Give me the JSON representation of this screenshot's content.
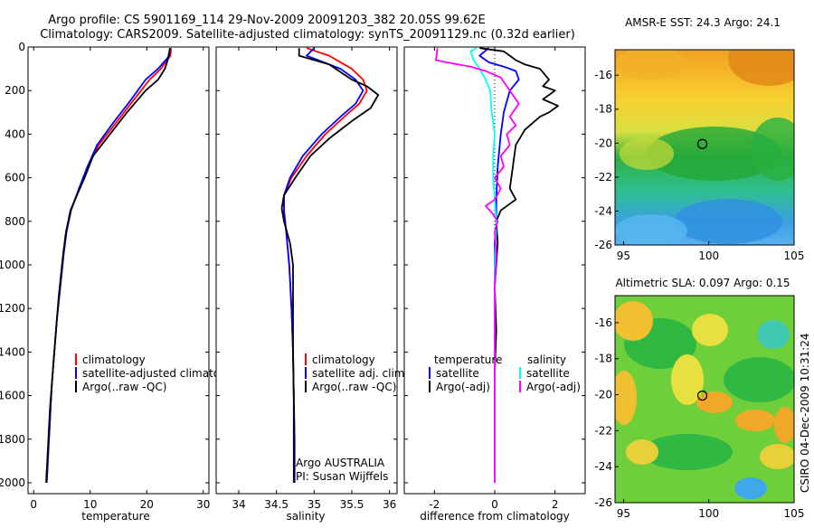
{
  "title": {
    "line1": "Argo profile: CS 5901169_114 29-Nov-2009 20091203_382 20.05S 99.62E",
    "line2": "Climatology: CARS2009. Satellite-adjusted climatology: synTS_20091129.nc (0.32d earlier)"
  },
  "credit": "CSIRO 04-Dec-2009 10:31:24",
  "colors": {
    "clim": "#ff0000",
    "sat": "#0000ff",
    "argo": "#000000",
    "sat_sal": "#00ffff",
    "argo_sal": "#ff00ff"
  },
  "chart_data": [
    {
      "type": "line",
      "id": "temperature",
      "xlabel": "temperature",
      "xlim": [
        -1,
        31
      ],
      "ylim": [
        0,
        2050
      ],
      "yreverse": true,
      "xticks": [
        0,
        10,
        20,
        30
      ],
      "yticks": [
        0,
        200,
        400,
        600,
        800,
        1000,
        1200,
        1400,
        1600,
        1800,
        2000
      ],
      "series": [
        {
          "name": "climatology",
          "color": "clim",
          "points": [
            [
              24.3,
              5
            ],
            [
              24.2,
              40
            ],
            [
              22.5,
              100
            ],
            [
              20.5,
              150
            ],
            [
              17.5,
              250
            ],
            [
              14.5,
              350
            ],
            [
              11.5,
              450
            ],
            [
              9.6,
              550
            ],
            [
              8.1,
              650
            ],
            [
              6.6,
              750
            ],
            [
              5.8,
              850
            ],
            [
              5.3,
              950
            ],
            [
              4.9,
              1050
            ],
            [
              4.5,
              1150
            ],
            [
              4.1,
              1250
            ],
            [
              3.8,
              1350
            ],
            [
              3.5,
              1450
            ],
            [
              3.2,
              1550
            ],
            [
              3.0,
              1650
            ],
            [
              2.8,
              1750
            ],
            [
              2.6,
              1850
            ],
            [
              2.4,
              1950
            ],
            [
              2.3,
              2000
            ]
          ]
        },
        {
          "name": "satellite-adjusted climatology",
          "color": "sat",
          "points": [
            [
              24.1,
              5
            ],
            [
              24.0,
              40
            ],
            [
              22.0,
              100
            ],
            [
              19.8,
              150
            ],
            [
              17.0,
              250
            ],
            [
              14.0,
              350
            ],
            [
              11.2,
              450
            ],
            [
              9.5,
              550
            ],
            [
              8.0,
              650
            ],
            [
              6.6,
              750
            ],
            [
              5.8,
              850
            ],
            [
              5.3,
              950
            ],
            [
              4.9,
              1050
            ],
            [
              4.5,
              1150
            ],
            [
              4.1,
              1250
            ],
            [
              3.8,
              1350
            ],
            [
              3.5,
              1450
            ],
            [
              3.2,
              1550
            ],
            [
              3.0,
              1650
            ],
            [
              2.8,
              1750
            ],
            [
              2.6,
              1850
            ],
            [
              2.4,
              1950
            ],
            [
              2.3,
              2000
            ]
          ]
        },
        {
          "name": "Argo(..raw -QC)",
          "color": "argo",
          "points": [
            [
              24.1,
              5
            ],
            [
              23.7,
              60
            ],
            [
              23.2,
              100
            ],
            [
              22.0,
              150
            ],
            [
              19.8,
              200
            ],
            [
              16.5,
              300
            ],
            [
              13.5,
              400
            ],
            [
              10.5,
              500
            ],
            [
              9.0,
              600
            ],
            [
              7.3,
              700
            ],
            [
              6.5,
              750
            ],
            [
              5.7,
              850
            ],
            [
              5.2,
              950
            ],
            [
              4.8,
              1050
            ],
            [
              4.4,
              1150
            ],
            [
              4.1,
              1250
            ],
            [
              3.8,
              1350
            ],
            [
              3.5,
              1450
            ],
            [
              3.2,
              1550
            ],
            [
              2.9,
              1650
            ],
            [
              2.7,
              1750
            ],
            [
              2.5,
              1850
            ],
            [
              2.3,
              1950
            ],
            [
              2.2,
              2000
            ]
          ]
        }
      ],
      "legend": [
        {
          "label": "climatology",
          "color": "clim"
        },
        {
          "label": "satellite-adjusted climatology",
          "color": "sat"
        },
        {
          "label": "Argo(..raw -QC)",
          "color": "argo"
        }
      ]
    },
    {
      "type": "line",
      "id": "salinity",
      "xlabel": "salinity",
      "xlim": [
        33.7,
        36.1
      ],
      "ylim": [
        0,
        2050
      ],
      "yreverse": true,
      "xticks": [
        34,
        34.5,
        35,
        35.5,
        36
      ],
      "xticklabels": [
        "34",
        "34.5",
        "35",
        "35.5",
        "36"
      ],
      "series": [
        {
          "name": "climatology",
          "color": "clim",
          "points": [
            [
              34.9,
              5
            ],
            [
              35.2,
              40
            ],
            [
              35.5,
              100
            ],
            [
              35.65,
              150
            ],
            [
              35.7,
              200
            ],
            [
              35.6,
              260
            ],
            [
              35.4,
              320
            ],
            [
              35.15,
              400
            ],
            [
              34.9,
              500
            ],
            [
              34.7,
              600
            ],
            [
              34.6,
              680
            ],
            [
              34.6,
              750
            ],
            [
              34.63,
              850
            ],
            [
              34.67,
              1000
            ],
            [
              34.7,
              1200
            ],
            [
              34.72,
              1400
            ],
            [
              34.73,
              1600
            ],
            [
              34.74,
              1800
            ],
            [
              34.74,
              2000
            ]
          ]
        },
        {
          "name": "satellite adj. clim.",
          "color": "sat",
          "points": [
            [
              35.0,
              5
            ],
            [
              34.9,
              40
            ],
            [
              35.35,
              100
            ],
            [
              35.55,
              150
            ],
            [
              35.65,
              200
            ],
            [
              35.55,
              260
            ],
            [
              35.35,
              320
            ],
            [
              35.1,
              400
            ],
            [
              34.85,
              500
            ],
            [
              34.68,
              600
            ],
            [
              34.6,
              680
            ],
            [
              34.6,
              750
            ],
            [
              34.63,
              850
            ],
            [
              34.67,
              1000
            ],
            [
              34.7,
              1200
            ],
            [
              34.72,
              1400
            ],
            [
              34.73,
              1600
            ],
            [
              34.74,
              1800
            ],
            [
              34.74,
              2000
            ]
          ]
        },
        {
          "name": "Argo(..raw -QC)",
          "color": "argo",
          "points": [
            [
              34.8,
              5
            ],
            [
              34.8,
              40
            ],
            [
              35.2,
              80
            ],
            [
              35.5,
              150
            ],
            [
              35.7,
              180
            ],
            [
              35.85,
              220
            ],
            [
              35.75,
              280
            ],
            [
              35.5,
              340
            ],
            [
              35.2,
              420
            ],
            [
              34.95,
              500
            ],
            [
              34.75,
              600
            ],
            [
              34.6,
              680
            ],
            [
              34.57,
              740
            ],
            [
              34.6,
              800
            ],
            [
              34.68,
              900
            ],
            [
              34.72,
              1000
            ],
            [
              34.72,
              1200
            ],
            [
              34.72,
              1400
            ],
            [
              34.73,
              1600
            ],
            [
              34.73,
              1800
            ],
            [
              34.73,
              2000
            ]
          ]
        }
      ],
      "legend": [
        {
          "label": "climatology",
          "color": "clim"
        },
        {
          "label": "satellite adj. clim.",
          "color": "sat"
        },
        {
          "label": "Argo(..raw -QC)",
          "color": "argo"
        }
      ],
      "annotation": [
        "Argo AUSTRALIA",
        "PI: Susan Wijffels"
      ]
    },
    {
      "type": "line",
      "id": "difference",
      "xlabel": "difference from climatology",
      "xlim": [
        -3,
        3
      ],
      "ylim": [
        0,
        2050
      ],
      "yreverse": true,
      "xticks": [
        -2,
        0,
        2
      ],
      "series": [
        {
          "name": "temperature satellite",
          "color": "sat",
          "points": [
            [
              -0.2,
              5
            ],
            [
              -0.5,
              40
            ],
            [
              -0.2,
              70
            ],
            [
              0.3,
              90
            ],
            [
              0.7,
              110
            ],
            [
              0.8,
              150
            ],
            [
              0.5,
              200
            ],
            [
              0.3,
              300
            ],
            [
              0.2,
              400
            ],
            [
              0.1,
              550
            ],
            [
              0.05,
              700
            ],
            [
              0.05,
              800
            ],
            [
              0.0,
              900
            ],
            [
              0.0,
              1100
            ],
            [
              0.0,
              1400
            ],
            [
              0.0,
              1700
            ],
            [
              0.0,
              2000
            ]
          ]
        },
        {
          "name": "temperature Argo(-adj)",
          "color": "argo",
          "points": [
            [
              -0.5,
              5
            ],
            [
              0.3,
              20
            ],
            [
              0.5,
              40
            ],
            [
              0.7,
              60
            ],
            [
              1.0,
              80
            ],
            [
              1.5,
              100
            ],
            [
              1.8,
              150
            ],
            [
              1.6,
              180
            ],
            [
              2.0,
              200
            ],
            [
              1.6,
              240
            ],
            [
              2.1,
              270
            ],
            [
              1.8,
              300
            ],
            [
              1.5,
              320
            ],
            [
              1.0,
              380
            ],
            [
              0.7,
              450
            ],
            [
              0.6,
              550
            ],
            [
              0.5,
              650
            ],
            [
              0.7,
              700
            ],
            [
              0.2,
              750
            ],
            [
              0.05,
              800
            ],
            [
              0.1,
              900
            ],
            [
              0.0,
              1100
            ],
            [
              0.05,
              1300
            ],
            [
              0.0,
              1500
            ],
            [
              0.0,
              1700
            ],
            [
              0.0,
              2000
            ]
          ]
        },
        {
          "name": "salinity satellite",
          "color": "sat_sal",
          "points": [
            [
              -0.6,
              5
            ],
            [
              -0.8,
              20
            ],
            [
              -0.7,
              60
            ],
            [
              -0.5,
              100
            ],
            [
              -0.3,
              150
            ],
            [
              -0.15,
              200
            ],
            [
              -0.1,
              300
            ],
            [
              0.0,
              400
            ],
            [
              -0.05,
              500
            ],
            [
              -0.05,
              600
            ],
            [
              0.0,
              700
            ],
            [
              0.05,
              800
            ],
            [
              0.0,
              1000
            ],
            [
              0.0,
              1500
            ],
            [
              0.0,
              2000
            ]
          ]
        },
        {
          "name": "salinity Argo(-adj)",
          "color": "argo_sal",
          "points": [
            [
              -1.9,
              5
            ],
            [
              -1.95,
              60
            ],
            [
              -1.6,
              70
            ],
            [
              -0.8,
              90
            ],
            [
              -0.3,
              110
            ],
            [
              0.2,
              140
            ],
            [
              0.5,
              200
            ],
            [
              0.8,
              260
            ],
            [
              0.5,
              320
            ],
            [
              0.7,
              360
            ],
            [
              0.4,
              400
            ],
            [
              0.5,
              450
            ],
            [
              0.2,
              500
            ],
            [
              0.3,
              550
            ],
            [
              0.0,
              600
            ],
            [
              0.2,
              650
            ],
            [
              0.0,
              700
            ],
            [
              -0.3,
              730
            ],
            [
              -0.1,
              760
            ],
            [
              0.1,
              800
            ],
            [
              0.0,
              850
            ],
            [
              0.05,
              950
            ],
            [
              0.0,
              1100
            ],
            [
              0.0,
              1300
            ],
            [
              0.0,
              1600
            ],
            [
              0.0,
              2000
            ]
          ]
        }
      ],
      "legend_left_header": "temperature",
      "legend_right_header": "salinity",
      "legend_left": [
        {
          "label": "satellite",
          "color": "sat"
        },
        {
          "label": "Argo(-adj)",
          "color": "argo"
        }
      ],
      "legend_right": [
        {
          "label": "satellite",
          "color": "sat_sal"
        },
        {
          "label": "Argo(-adj)",
          "color": "argo_sal"
        }
      ]
    },
    {
      "type": "heatmap",
      "id": "sst_map",
      "title": "AMSR-E SST: 24.3 Argo: 24.1",
      "xlim": [
        94.5,
        105
      ],
      "ylim": [
        -26,
        -14.5
      ],
      "xticks": [
        95,
        100,
        105
      ],
      "yticks": [
        -16,
        -18,
        -20,
        -22,
        -24,
        -26
      ],
      "marker": {
        "lon": 99.62,
        "lat": -20.05
      }
    },
    {
      "type": "heatmap",
      "id": "sla_map",
      "title": "Altimetric SLA: 0.097 Argo: 0.15",
      "xlim": [
        94.5,
        105
      ],
      "ylim": [
        -26,
        -14.5
      ],
      "xticks": [
        95,
        100,
        105
      ],
      "yticks": [
        -16,
        -18,
        -20,
        -22,
        -24,
        -26
      ],
      "marker": {
        "lon": 99.62,
        "lat": -20.05
      }
    }
  ]
}
